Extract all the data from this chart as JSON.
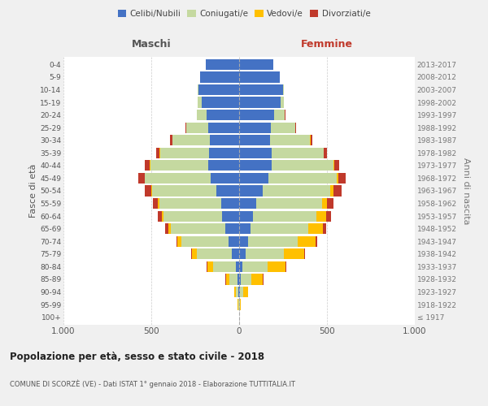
{
  "age_groups": [
    "100+",
    "95-99",
    "90-94",
    "85-89",
    "80-84",
    "75-79",
    "70-74",
    "65-69",
    "60-64",
    "55-59",
    "50-54",
    "45-49",
    "40-44",
    "35-39",
    "30-34",
    "25-29",
    "20-24",
    "15-19",
    "10-14",
    "5-9",
    "0-4"
  ],
  "birth_years": [
    "≤ 1917",
    "1918-1922",
    "1923-1927",
    "1928-1932",
    "1933-1937",
    "1938-1942",
    "1943-1947",
    "1948-1952",
    "1953-1957",
    "1958-1962",
    "1963-1967",
    "1968-1972",
    "1973-1977",
    "1978-1982",
    "1983-1987",
    "1988-1992",
    "1993-1997",
    "1998-2002",
    "2003-2007",
    "2008-2012",
    "2013-2017"
  ],
  "male": {
    "celibi": [
      0,
      2,
      5,
      10,
      20,
      40,
      60,
      80,
      95,
      100,
      130,
      160,
      175,
      170,
      165,
      175,
      185,
      215,
      230,
      220,
      190
    ],
    "coniugati": [
      0,
      3,
      15,
      45,
      130,
      200,
      270,
      310,
      335,
      355,
      365,
      375,
      330,
      280,
      215,
      125,
      55,
      20,
      5,
      2,
      1
    ],
    "vedovi": [
      0,
      2,
      8,
      20,
      30,
      30,
      20,
      15,
      10,
      8,
      5,
      3,
      2,
      2,
      1,
      1,
      1,
      0,
      0,
      0,
      0
    ],
    "divorziati": [
      0,
      0,
      1,
      2,
      3,
      4,
      8,
      15,
      25,
      30,
      35,
      35,
      30,
      20,
      12,
      5,
      2,
      1,
      0,
      0,
      0
    ]
  },
  "female": {
    "nubili": [
      0,
      2,
      5,
      10,
      18,
      35,
      50,
      65,
      80,
      95,
      135,
      165,
      185,
      185,
      175,
      180,
      200,
      235,
      250,
      230,
      195
    ],
    "coniugate": [
      0,
      3,
      20,
      60,
      145,
      220,
      285,
      330,
      360,
      375,
      385,
      390,
      350,
      295,
      230,
      140,
      60,
      20,
      5,
      2,
      1
    ],
    "vedove": [
      1,
      5,
      25,
      65,
      100,
      115,
      100,
      80,
      55,
      30,
      18,
      10,
      5,
      3,
      2,
      1,
      1,
      0,
      0,
      0,
      0
    ],
    "divorziate": [
      0,
      0,
      1,
      2,
      4,
      5,
      10,
      20,
      30,
      38,
      45,
      40,
      30,
      18,
      10,
      5,
      2,
      1,
      0,
      0,
      0
    ]
  },
  "colors": {
    "celibi": "#4472c4",
    "coniugati": "#c5d9a0",
    "vedovi": "#ffc000",
    "divorziati": "#c0392b"
  },
  "xlim": 1000,
  "title": "Popolazione per età, sesso e stato civile - 2018",
  "subtitle": "COMUNE DI SCORZÈ (VE) - Dati ISTAT 1° gennaio 2018 - Elaborazione TUTTITALIA.IT",
  "ylabel_left": "Fasce di età",
  "ylabel_right": "Anni di nascita",
  "xlabel_left": "Maschi",
  "xlabel_right": "Femmine",
  "bg_color": "#f0f0f0",
  "plot_bg": "#ffffff"
}
